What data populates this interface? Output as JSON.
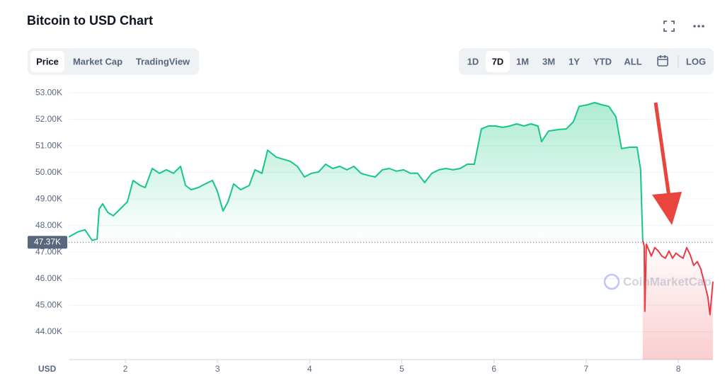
{
  "header": {
    "title": "Bitcoin to USD Chart"
  },
  "controls": {
    "tabs": [
      "Price",
      "Market Cap",
      "TradingView"
    ],
    "active_tab": 0,
    "ranges": [
      "1D",
      "7D",
      "1M",
      "3M",
      "1Y",
      "YTD",
      "ALL"
    ],
    "active_range": 1,
    "scale": "LOG"
  },
  "chart_data": {
    "type": "line",
    "x_label": "USD",
    "watermark": "CoinMarketCap",
    "xlim": [
      1.385,
      8.376
    ],
    "xticks": [
      2,
      3,
      4,
      5,
      6,
      7,
      8
    ],
    "ylim": [
      42950,
      53350
    ],
    "yticks": [
      {
        "value": 44000,
        "label": "44.00K"
      },
      {
        "value": 45000,
        "label": "45.00K"
      },
      {
        "value": 46000,
        "label": "46.00K"
      },
      {
        "value": 47000,
        "label": "47.00K"
      },
      {
        "value": 48000,
        "label": "48.00K"
      },
      {
        "value": 49000,
        "label": "49.00K"
      },
      {
        "value": 50000,
        "label": "50.00K"
      },
      {
        "value": 51000,
        "label": "51.00K"
      },
      {
        "value": 52000,
        "label": "52.00K"
      },
      {
        "value": 53000,
        "label": "53.00K"
      }
    ],
    "reference": {
      "value": 47370,
      "label": "47.37K"
    },
    "grid": true,
    "series": [
      {
        "color": "#16c784",
        "x": [
          1.386,
          1.485,
          1.562,
          1.639,
          1.693,
          1.716,
          1.754,
          1.808,
          1.869,
          1.946,
          2.023,
          2.084,
          2.161,
          2.215,
          2.292,
          2.369,
          2.445,
          2.522,
          2.599,
          2.653,
          2.714,
          2.791,
          2.868,
          2.945,
          2.998,
          3.06,
          3.114,
          3.175,
          3.252,
          3.344,
          3.406,
          3.482,
          3.544,
          3.636,
          3.713,
          3.79,
          3.866,
          3.943,
          4.02,
          4.097,
          4.173,
          4.25,
          4.327,
          4.404,
          4.48,
          4.557,
          4.634,
          4.711,
          4.788,
          4.864,
          4.941,
          5.018,
          5.095,
          5.171,
          5.248,
          5.325,
          5.402,
          5.479,
          5.556,
          5.633,
          5.71,
          5.786,
          5.863,
          5.94,
          6.017,
          6.094,
          6.17,
          6.247,
          6.324,
          6.401,
          6.478,
          6.516,
          6.593,
          6.708,
          6.785,
          6.862,
          6.923,
          7.015,
          7.092,
          7.169,
          7.246,
          7.323,
          7.384,
          7.476,
          7.553,
          7.591,
          7.614
        ],
        "values": [
          47570,
          47760,
          47840,
          47440,
          47490,
          48630,
          48820,
          48500,
          48370,
          48630,
          48900,
          49700,
          49510,
          49430,
          50150,
          49970,
          50100,
          49970,
          50230,
          49510,
          49350,
          49430,
          49570,
          49700,
          49300,
          48550,
          48900,
          49570,
          49350,
          49510,
          50100,
          49970,
          50840,
          50580,
          50500,
          50420,
          50230,
          49830,
          49970,
          50020,
          50310,
          50150,
          50230,
          50100,
          50230,
          49970,
          49890,
          49830,
          50100,
          50150,
          50050,
          50100,
          49970,
          49970,
          49620,
          49970,
          50100,
          50150,
          50100,
          50150,
          50310,
          50310,
          51640,
          51750,
          51750,
          51700,
          51750,
          51830,
          51750,
          51830,
          51750,
          51160,
          51560,
          51620,
          51640,
          51910,
          52490,
          52550,
          52630,
          52550,
          52490,
          52100,
          50900,
          50950,
          50950,
          50100,
          47440
        ]
      },
      {
        "color": "#ea3943",
        "x": [
          7.614,
          7.63,
          7.637,
          7.653,
          7.707,
          7.745,
          7.783,
          7.822,
          7.86,
          7.899,
          7.937,
          7.975,
          8.014,
          8.052,
          8.091,
          8.129,
          8.167,
          8.206,
          8.244,
          8.283,
          8.321,
          8.344,
          8.375
        ],
        "values": [
          47440,
          47220,
          44770,
          47300,
          46850,
          47170,
          47040,
          46850,
          46770,
          47040,
          46770,
          46960,
          46850,
          46770,
          47170,
          46900,
          46500,
          46640,
          46370,
          45840,
          45310,
          44640,
          45890
        ]
      }
    ]
  }
}
